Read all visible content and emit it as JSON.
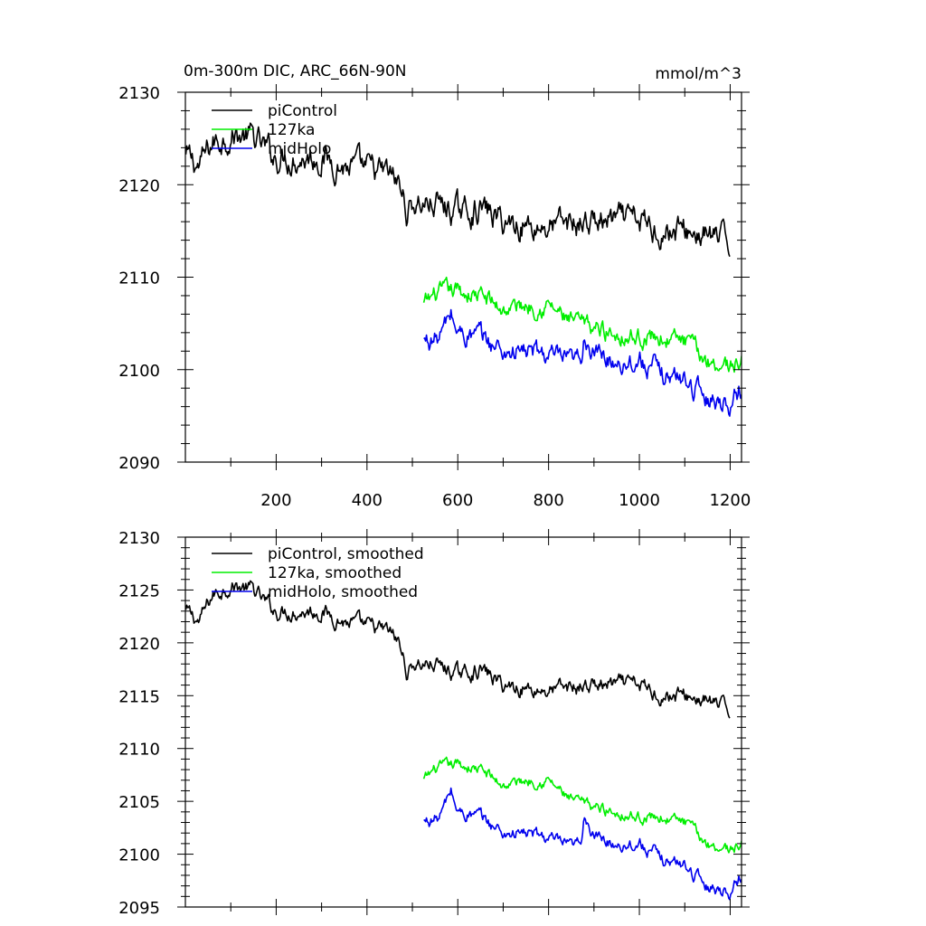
{
  "figure": {
    "title": "0m-300m DIC, ARC_66N-90N",
    "units": "mmol/m^3"
  },
  "chart_data": [
    {
      "type": "line",
      "id": "raw",
      "title": "0m-300m DIC, ARC_66N-90N",
      "units_label": "mmol/m^3",
      "xlabel": "",
      "ylabel": "",
      "xlim": [
        0,
        1225
      ],
      "ylim": [
        2090,
        2130
      ],
      "xticks": [
        200,
        400,
        600,
        800,
        1000,
        1200
      ],
      "xtick_labels": [
        "200",
        "400",
        "600",
        "800",
        "1000",
        "1200"
      ],
      "yticks": [
        2090,
        2100,
        2110,
        2120,
        2130
      ],
      "ytick_labels": [
        "2090",
        "2100",
        "2110",
        "2120",
        "2130"
      ],
      "legend_position": "top-left",
      "series": [
        {
          "name": "piControl",
          "color": "#000000",
          "x_start": 1,
          "x_end": 1200,
          "noise": 1.1,
          "anchors": [
            [
              1,
              2123
            ],
            [
              30,
              2122
            ],
            [
              60,
              2124.5
            ],
            [
              100,
              2125.5
            ],
            [
              150,
              2125
            ],
            [
              170,
              2124
            ],
            [
              200,
              2123
            ],
            [
              300,
              2123
            ],
            [
              350,
              2122
            ],
            [
              450,
              2121
            ],
            [
              470,
              2120
            ],
            [
              490,
              2117
            ],
            [
              500,
              2118
            ],
            [
              550,
              2118
            ],
            [
              600,
              2117
            ],
            [
              650,
              2117.5
            ],
            [
              700,
              2116
            ],
            [
              800,
              2115.5
            ],
            [
              900,
              2116
            ],
            [
              1000,
              2116
            ],
            [
              1050,
              2115
            ],
            [
              1100,
              2115
            ],
            [
              1150,
              2114.5
            ],
            [
              1200,
              2113.5
            ]
          ]
        },
        {
          "name": "127ka",
          "color": "#00ee00",
          "x_start": 525,
          "x_end": 1225,
          "noise": 0.75,
          "anchors": [
            [
              525,
              2107
            ],
            [
              550,
              2108
            ],
            [
              600,
              2108.5
            ],
            [
              650,
              2108
            ],
            [
              700,
              2106.5
            ],
            [
              750,
              2107
            ],
            [
              800,
              2107
            ],
            [
              850,
              2105
            ],
            [
              900,
              2104.5
            ],
            [
              950,
              2104
            ],
            [
              1000,
              2103.5
            ],
            [
              1050,
              2103.5
            ],
            [
              1100,
              2103
            ],
            [
              1150,
              2101
            ],
            [
              1200,
              2100.5
            ],
            [
              1225,
              2101
            ]
          ]
        },
        {
          "name": "midHolo",
          "color": "#0000ee",
          "x_start": 525,
          "x_end": 1225,
          "noise": 0.85,
          "anchors": [
            [
              525,
              2103
            ],
            [
              560,
              2103.5
            ],
            [
              585,
              2106
            ],
            [
              600,
              2104
            ],
            [
              650,
              2103.5
            ],
            [
              700,
              2102
            ],
            [
              750,
              2102
            ],
            [
              800,
              2101.5
            ],
            [
              850,
              2100.5
            ],
            [
              870,
              2101
            ],
            [
              880,
              2104
            ],
            [
              900,
              2101.5
            ],
            [
              950,
              2101
            ],
            [
              1000,
              2101
            ],
            [
              1050,
              2099.5
            ],
            [
              1100,
              2099
            ],
            [
              1150,
              2097
            ],
            [
              1200,
              2096.5
            ],
            [
              1225,
              2098
            ]
          ]
        }
      ]
    },
    {
      "type": "line",
      "id": "smoothed",
      "title": "",
      "xlabel": "",
      "ylabel": "",
      "xlim": [
        0,
        1225
      ],
      "ylim": [
        2095,
        2130
      ],
      "xticks": [
        200,
        400,
        600,
        800,
        1000,
        1200
      ],
      "xtick_labels": [],
      "yticks": [
        2095,
        2100,
        2105,
        2110,
        2115,
        2120,
        2125,
        2130
      ],
      "ytick_labels": [
        "2095",
        "2100",
        "2105",
        "2110",
        "2115",
        "2120",
        "2125",
        "2130"
      ],
      "legend_position": "top-left",
      "series": [
        {
          "name": "piControl, smoothed",
          "color": "#000000",
          "x_start": 1,
          "x_end": 1200,
          "noise": 0.55,
          "anchors": [
            [
              1,
              2123
            ],
            [
              30,
              2122
            ],
            [
              60,
              2124.5
            ],
            [
              100,
              2125.5
            ],
            [
              150,
              2125
            ],
            [
              170,
              2124
            ],
            [
              200,
              2123
            ],
            [
              300,
              2123
            ],
            [
              350,
              2122
            ],
            [
              450,
              2121
            ],
            [
              470,
              2120
            ],
            [
              490,
              2117
            ],
            [
              500,
              2118
            ],
            [
              550,
              2118
            ],
            [
              600,
              2117
            ],
            [
              650,
              2117.5
            ],
            [
              700,
              2116
            ],
            [
              800,
              2115.5
            ],
            [
              900,
              2116
            ],
            [
              1000,
              2116
            ],
            [
              1050,
              2115
            ],
            [
              1100,
              2115
            ],
            [
              1150,
              2114.5
            ],
            [
              1200,
              2113.5
            ]
          ]
        },
        {
          "name": "127ka, smoothed",
          "color": "#00ee00",
          "x_start": 525,
          "x_end": 1225,
          "noise": 0.4,
          "anchors": [
            [
              525,
              2107
            ],
            [
              550,
              2108
            ],
            [
              600,
              2108.5
            ],
            [
              650,
              2108
            ],
            [
              700,
              2106.5
            ],
            [
              750,
              2107
            ],
            [
              800,
              2107
            ],
            [
              850,
              2105
            ],
            [
              900,
              2104.5
            ],
            [
              950,
              2104
            ],
            [
              1000,
              2103.5
            ],
            [
              1050,
              2103.5
            ],
            [
              1100,
              2103
            ],
            [
              1150,
              2101
            ],
            [
              1200,
              2100.5
            ],
            [
              1225,
              2101
            ]
          ]
        },
        {
          "name": "midHolo, smoothed",
          "color": "#0000ee",
          "x_start": 525,
          "x_end": 1225,
          "noise": 0.45,
          "anchors": [
            [
              525,
              2103
            ],
            [
              560,
              2103.5
            ],
            [
              585,
              2106
            ],
            [
              600,
              2104
            ],
            [
              650,
              2103.5
            ],
            [
              700,
              2102
            ],
            [
              750,
              2102
            ],
            [
              800,
              2101.5
            ],
            [
              850,
              2100.5
            ],
            [
              870,
              2101
            ],
            [
              880,
              2104
            ],
            [
              900,
              2101.5
            ],
            [
              950,
              2101
            ],
            [
              1000,
              2101
            ],
            [
              1050,
              2099.5
            ],
            [
              1100,
              2099
            ],
            [
              1150,
              2097
            ],
            [
              1200,
              2096.5
            ],
            [
              1225,
              2098
            ]
          ]
        }
      ]
    }
  ]
}
